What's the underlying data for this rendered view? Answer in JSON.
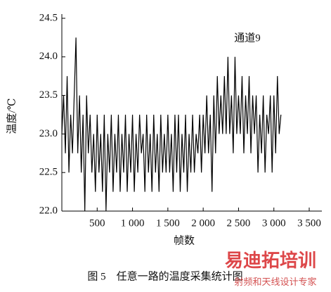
{
  "chart_data": {
    "type": "line",
    "y_label": "温度/℃",
    "x_label": "帧数",
    "annotation": "通道9",
    "caption": "图 5　任意一路的温度采集统计图",
    "watermark": {
      "title": "易迪拓培训",
      "subtitle": "射频和天线设计专家"
    },
    "xlim": [
      0,
      3500
    ],
    "xticks": [
      500,
      {
        "value": 1000,
        "label": "1 000"
      },
      {
        "value": 1500,
        "label": "1 500"
      },
      {
        "value": 2000,
        "label": "2 000"
      },
      {
        "value": 2500,
        "label": "2 500"
      },
      {
        "value": 3000,
        "label": "3 000"
      },
      {
        "value": 3500,
        "label": "3 500"
      }
    ],
    "ylim": [
      22,
      24.5
    ],
    "yticks": [
      {
        "value": 22,
        "label": "22.0"
      },
      22.5,
      {
        "value": 23,
        "label": "23.0"
      },
      23.5,
      {
        "value": 24,
        "label": "24.0"
      },
      24.5
    ],
    "series": [
      {
        "color": "#000000",
        "x": [
          0,
          25,
          50,
          75,
          100,
          125,
          150,
          175,
          200,
          225,
          250,
          275,
          300,
          325,
          350,
          375,
          400,
          425,
          450,
          475,
          500,
          525,
          550,
          575,
          600,
          625,
          650,
          675,
          700,
          725,
          750,
          775,
          800,
          825,
          850,
          875,
          900,
          925,
          950,
          975,
          1000,
          1025,
          1050,
          1075,
          1100,
          1125,
          1150,
          1175,
          1200,
          1225,
          1250,
          1275,
          1300,
          1325,
          1350,
          1375,
          1400,
          1425,
          1450,
          1475,
          1500,
          1525,
          1550,
          1575,
          1600,
          1625,
          1650,
          1675,
          1700,
          1725,
          1750,
          1775,
          1800,
          1825,
          1850,
          1875,
          1900,
          1925,
          1950,
          1975,
          2000,
          2025,
          2050,
          2075,
          2100,
          2125,
          2150,
          2175,
          2200,
          2225,
          2250,
          2275,
          2300,
          2325,
          2350,
          2375,
          2400,
          2425,
          2450,
          2475,
          2500,
          2525,
          2550,
          2575,
          2600,
          2625,
          2650,
          2675,
          2700,
          2725,
          2750,
          2775,
          2800,
          2825,
          2850,
          2875,
          2900,
          2925,
          2950,
          2975,
          3000,
          3025,
          3050,
          3075,
          3100
        ],
        "values": [
          23,
          23.5,
          22.75,
          23.75,
          22.5,
          23.25,
          22.75,
          23.5,
          24.25,
          22.75,
          23.5,
          22.5,
          23.25,
          22,
          23.5,
          22.75,
          23.25,
          22.5,
          23,
          22.25,
          23.25,
          22.5,
          23,
          22.25,
          23.25,
          22,
          23,
          22.5,
          23.25,
          22.25,
          23,
          22.5,
          23.25,
          22.25,
          23,
          22.5,
          23.25,
          22.25,
          23,
          22.5,
          23.25,
          22.25,
          23,
          22.5,
          23.25,
          22.75,
          23,
          22.25,
          23.25,
          22.5,
          23,
          22.25,
          23.25,
          22.5,
          23,
          22.25,
          23.25,
          22.5,
          23,
          22.5,
          23.25,
          22.5,
          23,
          22.25,
          23.25,
          22.5,
          23.25,
          22.25,
          23,
          22.5,
          23.25,
          22.25,
          23,
          22.5,
          23.25,
          22.5,
          23,
          22.75,
          23.25,
          22.5,
          23.25,
          22.75,
          23.5,
          22.75,
          23.25,
          22.25,
          23.5,
          22.75,
          23.75,
          23,
          23.5,
          23,
          23.75,
          23,
          24,
          23,
          23.5,
          22.75,
          24,
          23,
          23.5,
          23,
          23.75,
          22.75,
          23.5,
          23,
          23.75,
          22.75,
          23.5,
          23,
          23.5,
          22.5,
          23.25,
          22.75,
          23.5,
          22.5,
          23.25,
          23,
          23.5,
          22.5,
          23.5,
          22.75,
          23.75,
          23,
          23.25
        ]
      }
    ]
  }
}
